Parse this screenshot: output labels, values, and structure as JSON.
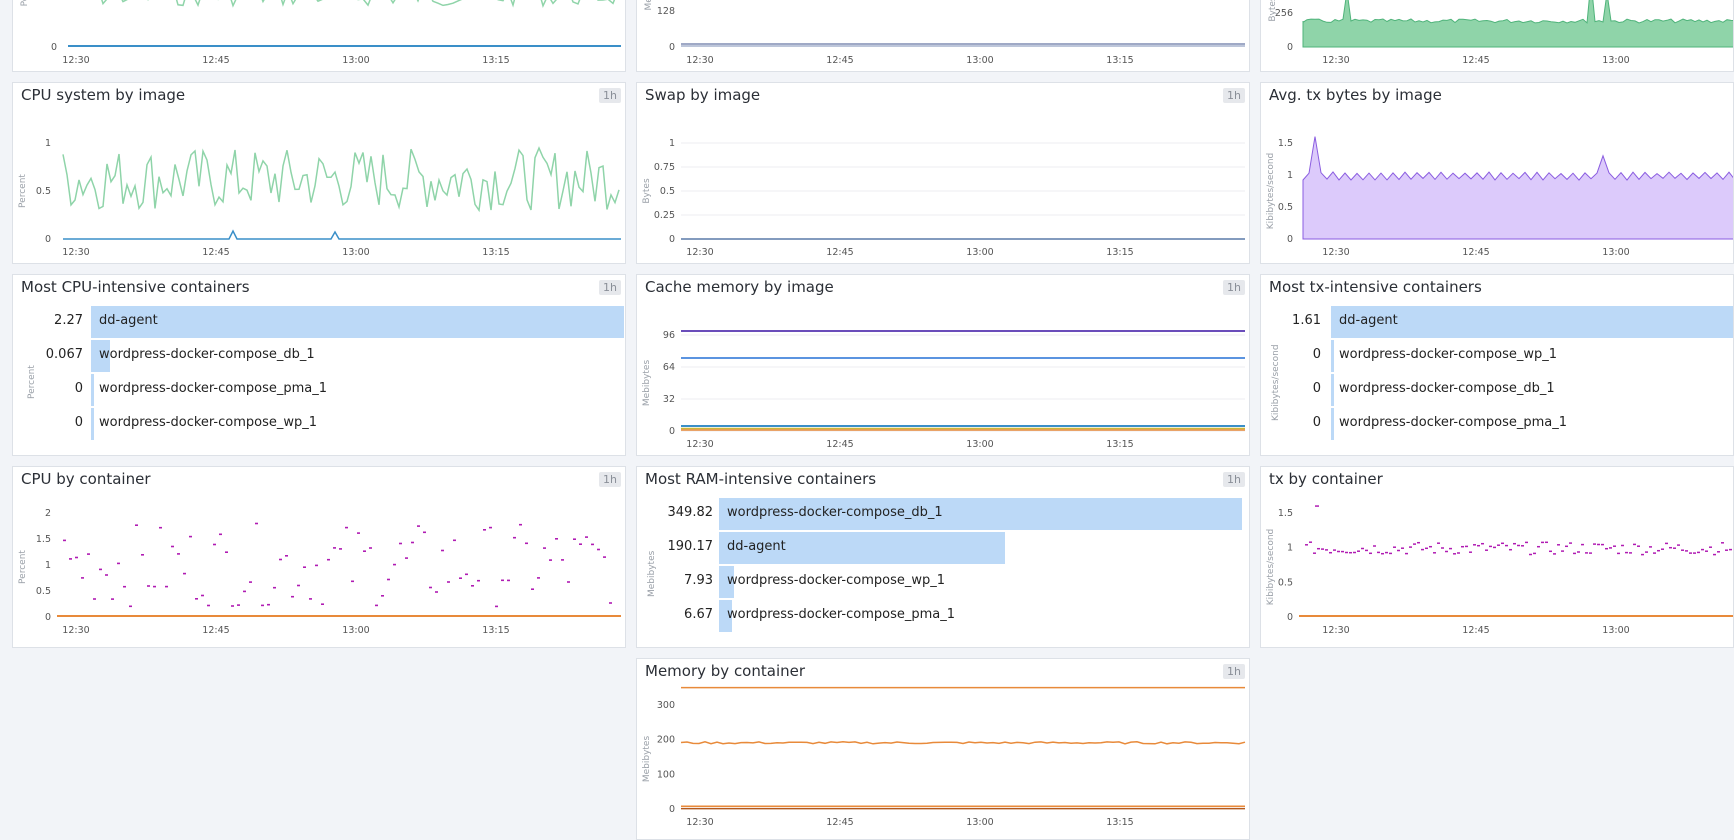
{
  "colors": {
    "green": "#8fd4a9",
    "blue": "#3a8fc8",
    "purple": "#8a5ce0",
    "lavender": "#dccafb",
    "orange": "#e88a3a",
    "magenta": "#b01cb3",
    "bar": "#bcd9f7"
  },
  "badge": "1h",
  "row0": {
    "left": {
      "ylabel": "Pe",
      "yticks": [
        "0"
      ],
      "xticks": [
        "12:30",
        "12:45",
        "13:00",
        "13:15"
      ]
    },
    "mid": {
      "ylabel": "Meb",
      "yticks": [
        "128",
        "0"
      ],
      "xticks": [
        "12:30",
        "12:45",
        "13:00",
        "13:15"
      ]
    },
    "right": {
      "ylabel": "Bytes",
      "yticks": [
        "256",
        "0"
      ],
      "xticks": [
        "12:30",
        "12:45",
        "13:00"
      ]
    }
  },
  "cpu_system": {
    "title": "CPU system by image",
    "ylabel": "Percent",
    "yticks": [
      "1",
      "0.5",
      "0"
    ],
    "xticks": [
      "12:30",
      "12:45",
      "13:00",
      "13:15"
    ]
  },
  "swap": {
    "title": "Swap by image",
    "ylabel": "Bytes",
    "yticks": [
      "1",
      "0.75",
      "0.5",
      "0.25",
      "0"
    ],
    "xticks": [
      "12:30",
      "12:45",
      "13:00",
      "13:15"
    ]
  },
  "avg_tx": {
    "title": "Avg. tx bytes by image",
    "ylabel": "Kibibytes/second",
    "yticks": [
      "1.5",
      "1",
      "0.5",
      "0"
    ],
    "xticks": [
      "12:30",
      "12:45",
      "13:00"
    ]
  },
  "cpu_top": {
    "title": "Most CPU-intensive containers",
    "unit": "Percent",
    "rows": [
      {
        "value": "2.27",
        "name": "dd-agent",
        "frac": 1.0
      },
      {
        "value": "0.067",
        "name": "wordpress-docker-compose_db_1",
        "frac": 0.03
      },
      {
        "value": "0",
        "name": "wordpress-docker-compose_pma_1",
        "frac": 0
      },
      {
        "value": "0",
        "name": "wordpress-docker-compose_wp_1",
        "frac": 0
      }
    ]
  },
  "cache": {
    "title": "Cache memory by image",
    "ylabel": "Mebibytes",
    "yticks": [
      "96",
      "64",
      "32",
      "0"
    ],
    "xticks": [
      "12:30",
      "12:45",
      "13:00",
      "13:15"
    ]
  },
  "tx_top": {
    "title": "Most tx-intensive containers",
    "unit": "Kibibytes/second",
    "rows": [
      {
        "value": "1.61",
        "name": "dd-agent",
        "frac": 1.0
      },
      {
        "value": "0",
        "name": "wordpress-docker-compose_wp_1",
        "frac": 0
      },
      {
        "value": "0",
        "name": "wordpress-docker-compose_db_1",
        "frac": 0
      },
      {
        "value": "0",
        "name": "wordpress-docker-compose_pma_1",
        "frac": 0
      }
    ]
  },
  "cpu_container": {
    "title": "CPU by container",
    "ylabel": "Percent",
    "yticks": [
      "2",
      "1.5",
      "1",
      "0.5",
      "0"
    ],
    "xticks": [
      "12:30",
      "12:45",
      "13:00",
      "13:15"
    ]
  },
  "ram_top": {
    "title": "Most RAM-intensive containers",
    "unit": "Mebibytes",
    "rows": [
      {
        "value": "349.82",
        "name": "wordpress-docker-compose_db_1",
        "frac": 1.0
      },
      {
        "value": "190.17",
        "name": "dd-agent",
        "frac": 0.544
      },
      {
        "value": "7.93",
        "name": "wordpress-docker-compose_wp_1",
        "frac": 0.023
      },
      {
        "value": "6.67",
        "name": "wordpress-docker-compose_pma_1",
        "frac": 0.019
      }
    ]
  },
  "tx_container": {
    "title": "tx by container",
    "ylabel": "Kibibytes/second",
    "yticks": [
      "1.5",
      "1",
      "0.5",
      "0"
    ],
    "xticks": [
      "12:30",
      "12:45",
      "13:00"
    ]
  },
  "mem_container": {
    "title": "Memory by container",
    "ylabel": "Mebibytes",
    "yticks": [
      "300",
      "200",
      "100",
      "0"
    ],
    "xticks": [
      "12:30",
      "12:45",
      "13:00",
      "13:15"
    ]
  }
}
